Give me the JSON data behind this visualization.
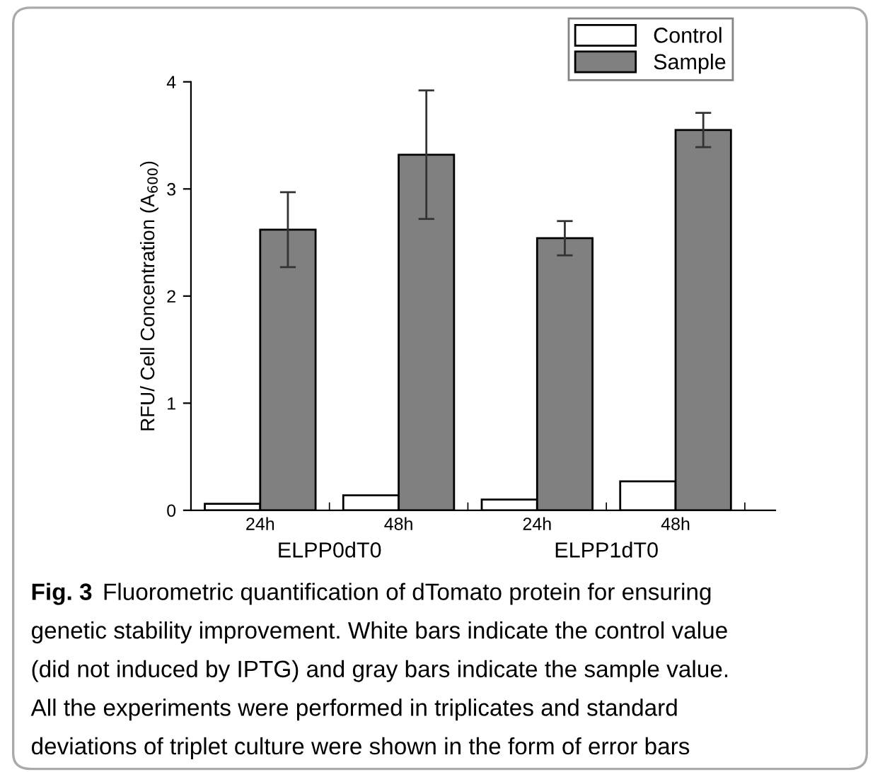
{
  "chart_data": {
    "type": "bar",
    "categories": [
      "24h",
      "48h",
      "24h",
      "48h"
    ],
    "ylabel": "RFU/ Cell Concentration (A$_{600}$)",
    "ylim": [
      0,
      4
    ],
    "yticks": [
      0,
      1,
      2,
      3,
      4
    ],
    "series": [
      {
        "name": "Control",
        "color": "#ffffff",
        "values": [
          0.06,
          0.14,
          0.1,
          0.27
        ]
      },
      {
        "name": "Sample",
        "color": "#808080",
        "values": [
          2.62,
          3.32,
          2.54,
          3.55
        ],
        "errors": [
          0.35,
          0.6,
          0.16,
          0.16
        ]
      }
    ],
    "legend": "top right",
    "grid": false,
    "annotations": [
      "ELPP0dT0",
      "ELPP1dT0",
      "Fig. 3",
      "Fluorometric quantification of dTomato protein for ensuring\ngenetic stability improvement. White bars indicate the control value\n(did not induced by IPTG) and gray bars indicate the sample value.\nAll the experiments were performed in triplicates and standard\ndeviations of triplet culture were shown in the form of error bars"
    ]
  }
}
